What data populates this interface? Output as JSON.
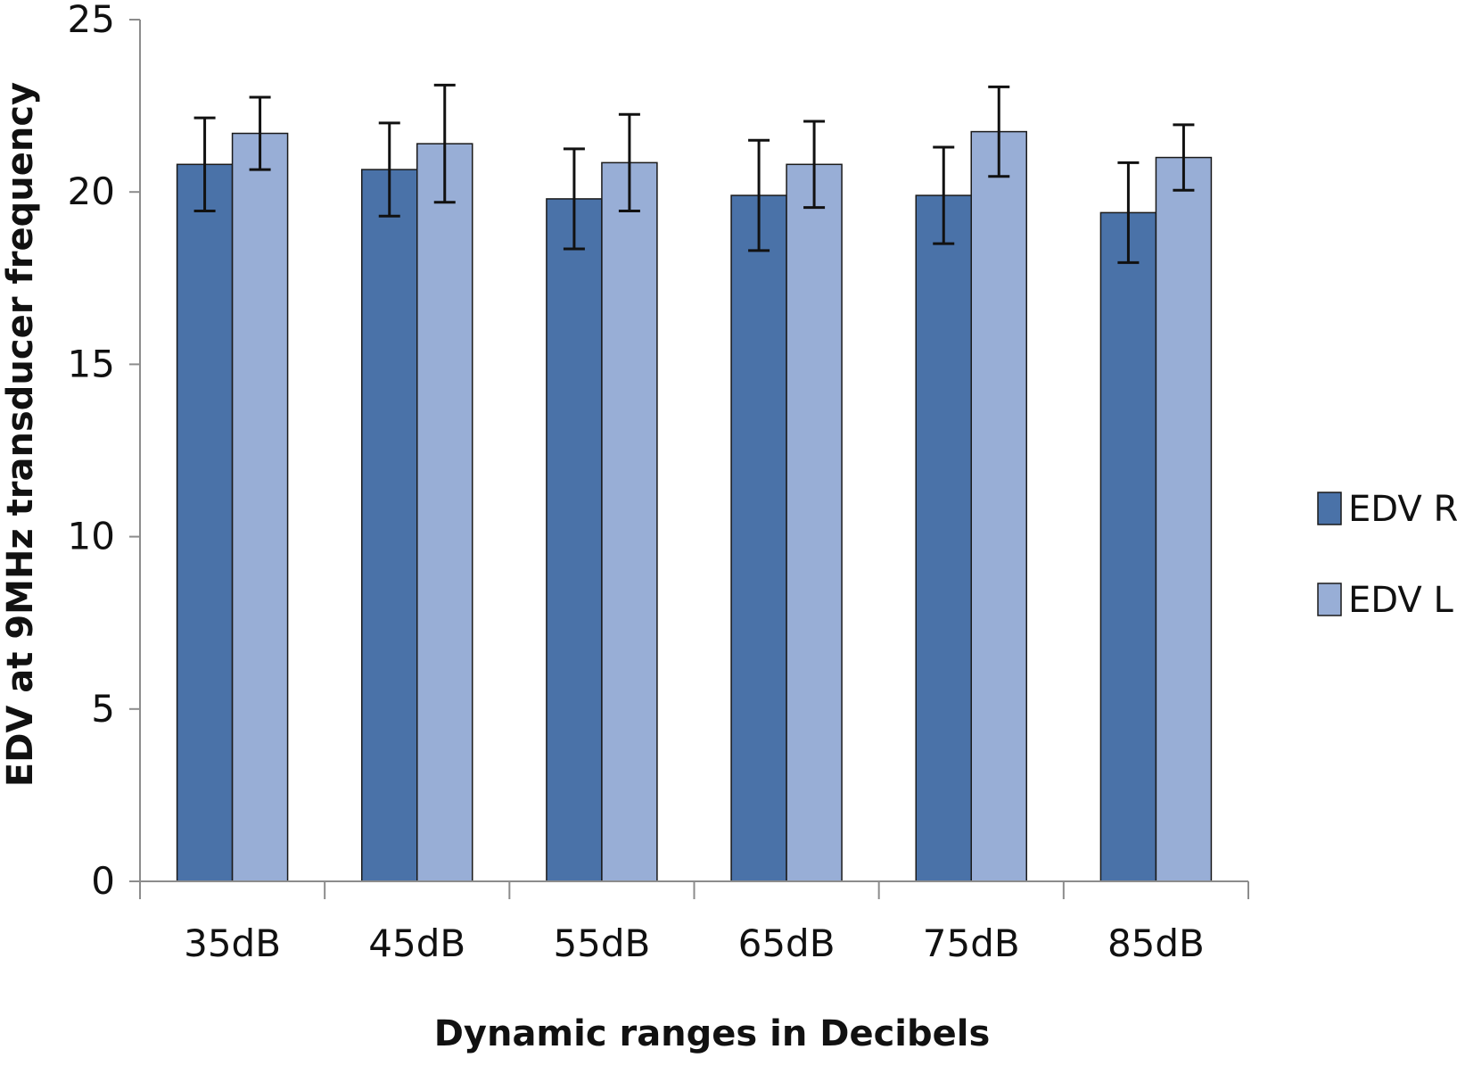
{
  "chart_data": {
    "type": "bar",
    "title": "",
    "xlabel": "Dynamic ranges in Decibels",
    "ylabel": "EDV at  9MHz transducer frequency",
    "categories": [
      "35dB",
      "45dB",
      "55dB",
      "65dB",
      "75dB",
      "85dB"
    ],
    "ylim": [
      0,
      25
    ],
    "yticks": [
      0,
      5,
      10,
      15,
      20,
      25
    ],
    "grid": false,
    "legend_position": "right",
    "series": [
      {
        "name": "EDV R",
        "color": "#4a72a8",
        "values": [
          20.8,
          20.65,
          19.8,
          19.9,
          19.9,
          19.4
        ],
        "error": [
          1.35,
          1.35,
          1.45,
          1.6,
          1.4,
          1.45
        ]
      },
      {
        "name": "EDV L",
        "color": "#98aed6",
        "values": [
          21.7,
          21.4,
          20.85,
          20.8,
          21.75,
          21.0
        ],
        "error": [
          1.05,
          1.7,
          1.4,
          1.25,
          1.3,
          0.95
        ]
      }
    ]
  }
}
